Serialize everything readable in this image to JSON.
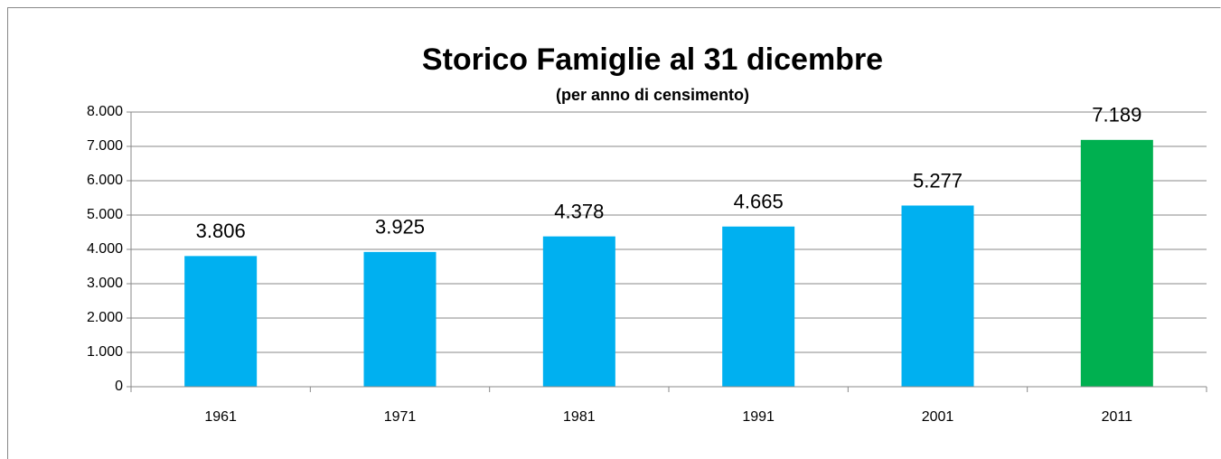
{
  "chart_data": {
    "type": "bar",
    "title": "Storico Famiglie al 31 dicembre",
    "subtitle": "(per  anno di censimento)",
    "categories": [
      "1961",
      "1971",
      "1981",
      "1991",
      "2001",
      "2011"
    ],
    "values": [
      3806,
      3925,
      4378,
      4665,
      5277,
      7189
    ],
    "value_labels": [
      "3.806",
      "3.925",
      "4.378",
      "4.665",
      "5.277",
      "7.189"
    ],
    "colors": [
      "#00b0f0",
      "#00b0f0",
      "#00b0f0",
      "#00b0f0",
      "#00b0f0",
      "#00b050"
    ],
    "ylim": [
      0,
      8000
    ],
    "yticks": [
      0,
      {
        "value": 1000,
        "label": "1.000"
      },
      {
        "value": 2000,
        "label": "2.000"
      },
      {
        "value": 3000,
        "label": "3.000"
      },
      {
        "value": 4000,
        "label": "4.000"
      },
      {
        "value": 5000,
        "label": "5.000"
      },
      {
        "value": 6000,
        "label": "6.000"
      },
      {
        "value": 7000,
        "label": "7.000"
      },
      {
        "value": 8000,
        "label": "8.000"
      }
    ],
    "grid": true
  }
}
